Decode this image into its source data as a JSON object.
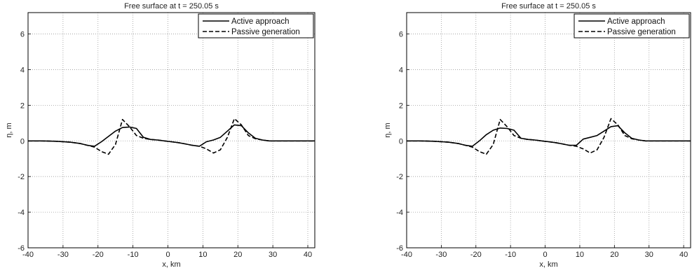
{
  "chart_data": [
    {
      "type": "line",
      "title": "Free surface at t = 250.05 s",
      "xlabel": "x, km",
      "ylabel": "η, m",
      "xlim": [
        -40,
        42
      ],
      "ylim": [
        -6,
        7.2
      ],
      "xticks": [
        "-40",
        "-30",
        "-20",
        "-10",
        "0",
        "10",
        "20",
        "30",
        "40"
      ],
      "yticks": [
        "-6",
        "-4",
        "-2",
        "0",
        "2",
        "4",
        "6"
      ],
      "grid": true,
      "legend_position": "top-right",
      "series": [
        {
          "name": "Active approach",
          "style": "solid",
          "x": [
            -40,
            -36,
            -32,
            -28,
            -25,
            -23,
            -21,
            -19,
            -17,
            -15,
            -13,
            -11,
            -9,
            -7,
            -5,
            -3,
            -1,
            1,
            3,
            5,
            7,
            9,
            11,
            13,
            15,
            17,
            19,
            21,
            23,
            25,
            27,
            29,
            32,
            36,
            42
          ],
          "y": [
            0,
            0,
            -0.02,
            -0.07,
            -0.15,
            -0.25,
            -0.3,
            -0.05,
            0.25,
            0.55,
            0.75,
            0.78,
            0.7,
            0.2,
            0.08,
            0.05,
            0.0,
            -0.05,
            -0.1,
            -0.17,
            -0.25,
            -0.3,
            -0.05,
            0.05,
            0.2,
            0.55,
            0.9,
            0.85,
            0.45,
            0.15,
            0.05,
            0.0,
            0.0,
            0.0,
            0.0
          ]
        },
        {
          "name": "Passive generation",
          "style": "dashed",
          "x": [
            -40,
            -36,
            -32,
            -28,
            -25,
            -23,
            -21,
            -19,
            -17,
            -15,
            -13,
            -11,
            -9,
            -7,
            -5,
            -3,
            -1,
            1,
            3,
            5,
            7,
            9,
            11,
            13,
            15,
            17,
            19,
            21,
            23,
            25,
            27,
            29,
            32,
            36,
            42
          ],
          "y": [
            0,
            0,
            -0.02,
            -0.07,
            -0.15,
            -0.25,
            -0.35,
            -0.6,
            -0.75,
            -0.2,
            1.2,
            0.8,
            0.3,
            0.15,
            0.08,
            0.05,
            0.0,
            -0.05,
            -0.1,
            -0.17,
            -0.25,
            -0.3,
            -0.45,
            -0.68,
            -0.5,
            0.2,
            1.25,
            0.9,
            0.3,
            0.12,
            0.05,
            0.0,
            0.0,
            0.0,
            0.0
          ]
        }
      ]
    },
    {
      "type": "line",
      "title": "Free surface at t = 250.05 s",
      "xlabel": "x, km",
      "ylabel": "η, m",
      "xlim": [
        -40,
        42
      ],
      "ylim": [
        -6,
        7.2
      ],
      "xticks": [
        "-40",
        "-30",
        "-20",
        "-10",
        "0",
        "10",
        "20",
        "30",
        "40"
      ],
      "yticks": [
        "-6",
        "-4",
        "-2",
        "0",
        "2",
        "4",
        "6"
      ],
      "grid": true,
      "legend_position": "top-right",
      "series": [
        {
          "name": "Active approach",
          "style": "solid",
          "x": [
            -40,
            -36,
            -32,
            -28,
            -25,
            -23,
            -21,
            -19,
            -17,
            -15,
            -13,
            -11,
            -9,
            -7,
            -5,
            -3,
            -1,
            1,
            3,
            5,
            7,
            9,
            11,
            13,
            15,
            17,
            19,
            21,
            23,
            25,
            27,
            29,
            32,
            36,
            42
          ],
          "y": [
            0,
            0,
            -0.02,
            -0.07,
            -0.15,
            -0.25,
            -0.3,
            0.0,
            0.35,
            0.6,
            0.72,
            0.7,
            0.6,
            0.15,
            0.08,
            0.05,
            0.0,
            -0.05,
            -0.1,
            -0.17,
            -0.25,
            -0.25,
            0.1,
            0.2,
            0.3,
            0.55,
            0.8,
            0.85,
            0.45,
            0.15,
            0.05,
            0.0,
            0.0,
            0.0,
            0.0
          ]
        },
        {
          "name": "Passive generation",
          "style": "dashed",
          "x": [
            -40,
            -36,
            -32,
            -28,
            -25,
            -23,
            -21,
            -19,
            -17,
            -15,
            -13,
            -11,
            -9,
            -7,
            -5,
            -3,
            -1,
            1,
            3,
            5,
            7,
            9,
            11,
            13,
            15,
            17,
            19,
            21,
            23,
            25,
            27,
            29,
            32,
            36,
            42
          ],
          "y": [
            0,
            0,
            -0.02,
            -0.07,
            -0.15,
            -0.25,
            -0.35,
            -0.6,
            -0.75,
            -0.2,
            1.2,
            0.8,
            0.3,
            0.15,
            0.08,
            0.05,
            0.0,
            -0.05,
            -0.1,
            -0.17,
            -0.25,
            -0.3,
            -0.45,
            -0.68,
            -0.5,
            0.2,
            1.25,
            0.9,
            0.3,
            0.12,
            0.05,
            0.0,
            0.0,
            0.0,
            0.0
          ]
        }
      ]
    }
  ]
}
